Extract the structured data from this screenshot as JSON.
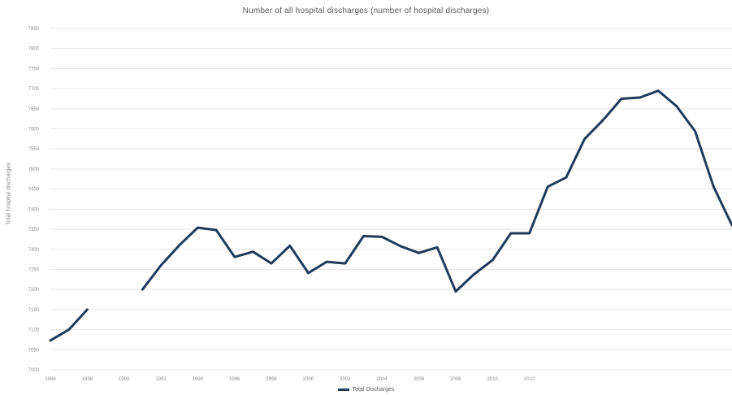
{
  "chart_data": {
    "type": "line",
    "title": "Number of all hospital discharges (number of hospital discharges)",
    "ylabel": "Total hospital discharges",
    "xlabel": "",
    "x_tick_labels": [
      "1986",
      "1988",
      "1990",
      "1992",
      "1994",
      "1996",
      "1998",
      "2000",
      "2002",
      "2004",
      "2006",
      "2008",
      "2010",
      "2012"
    ],
    "y_tick_labels": [
      "7000",
      "7050",
      "7100",
      "7150",
      "7200",
      "7250",
      "7300",
      "7350",
      "7400",
      "7450",
      "7500",
      "7550",
      "7600",
      "7650",
      "7700",
      "7750",
      "7800",
      "7850"
    ],
    "ylim": [
      7000,
      7850
    ],
    "grid": true,
    "legend_position": "bottom",
    "colors": {
      "series": "#1f3a5a",
      "grid": "#e6e6e6"
    },
    "series": [
      {
        "name": "Total Discharges",
        "x": [
          1986,
          1987,
          1988,
          1989,
          1990,
          1991,
          1992,
          1993,
          1994,
          1995,
          1996,
          1997,
          1998,
          1999,
          2000,
          2001,
          2002,
          2003,
          2004,
          2005,
          2006,
          2007,
          2008,
          2009,
          2010,
          2011,
          2012,
          2013,
          2014,
          2015,
          2016,
          2017,
          2018,
          2019,
          2020,
          2021,
          2022,
          2023
        ],
        "values": [
          7073,
          7100,
          7150,
          null,
          null,
          7200,
          7260,
          7310,
          7354,
          7348,
          7281,
          7294,
          7265,
          7309,
          7241,
          7269,
          7265,
          7333,
          7331,
          7308,
          7291,
          7305,
          7195,
          7238,
          7273,
          7340,
          7340,
          7456,
          7479,
          7575,
          7622,
          7675,
          7678,
          7695,
          7656,
          7594,
          7456,
          7360
        ]
      }
    ]
  }
}
